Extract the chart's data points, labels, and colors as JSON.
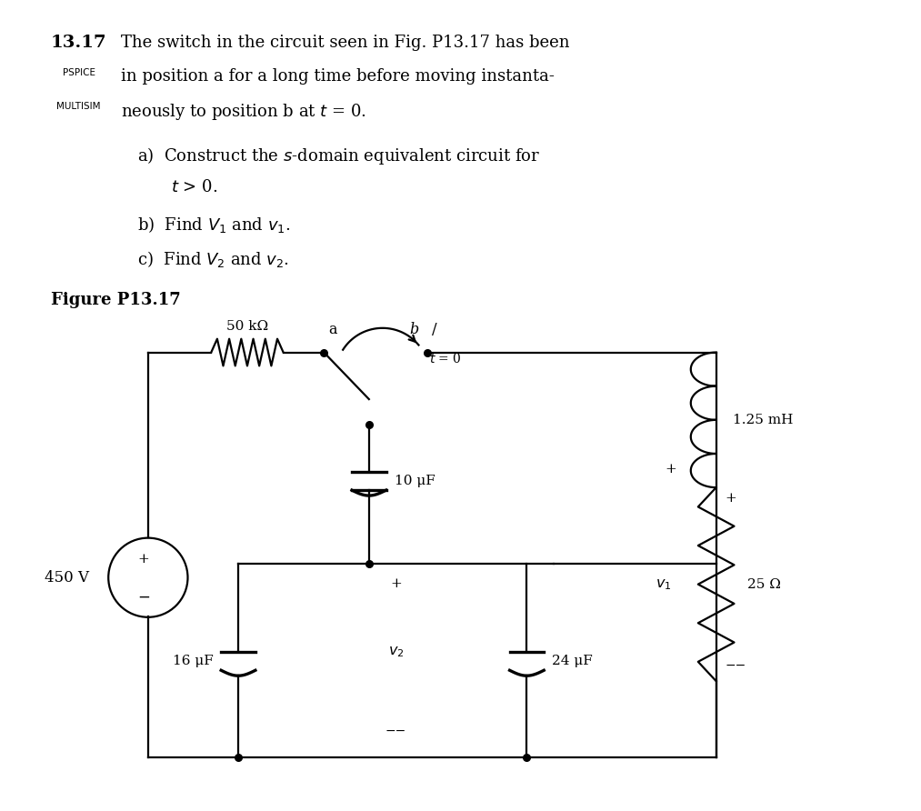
{
  "bg_color": "#ffffff",
  "text_color": "#000000",
  "figure_label": "Figure P13.17",
  "circuit": {
    "resistor_label": "50 kΩ",
    "inductor_label": "1.25 mH",
    "cap1_label": "10 μF",
    "cap2_label": "16 μF",
    "cap3_label": "24 μF",
    "resistor2_label": "25 Ω",
    "voltage_label": "450 V",
    "switch_a": "a",
    "switch_b": "b",
    "switch_time": "t = 0"
  }
}
